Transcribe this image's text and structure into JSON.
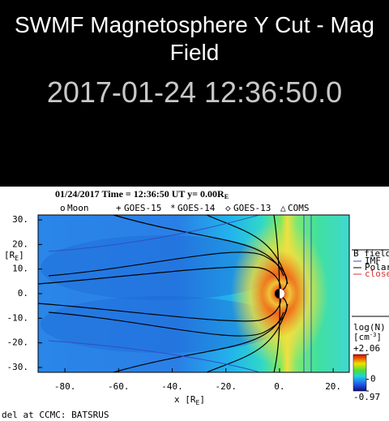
{
  "header": {
    "title": "SWMF Magnetosphere Y Cut - Mag Field",
    "timestamp": "2017-01-24 12:36:50.0"
  },
  "plot": {
    "title": "01/24/2017 Time = 12:36:50 UT y= 0.00R",
    "title_sub": "E",
    "legend": [
      "Moon",
      "GOES-15",
      "GOES-14",
      "GOES-13",
      "COMS"
    ],
    "xlabel": "x [R",
    "xlabel_sub": "E",
    "xlabel_end": "]",
    "ylabel": "[R",
    "ylabel_sub": "E",
    "ylabel_end": "]",
    "xlim": [
      -90,
      26
    ],
    "ylim": [
      -32,
      32
    ],
    "xticks": [
      {
        "value": -80,
        "label": "-80."
      },
      {
        "value": -60,
        "label": "-60."
      },
      {
        "value": -40,
        "label": "-40."
      },
      {
        "value": -20,
        "label": "-20."
      },
      {
        "value": 0,
        "label": "0."
      },
      {
        "value": 20,
        "label": "20."
      }
    ],
    "yticks": [
      {
        "value": 30,
        "label": "30."
      },
      {
        "value": 20,
        "label": "20."
      },
      {
        "value": 10,
        "label": "10."
      },
      {
        "value": 0,
        "label": "0."
      },
      {
        "value": -10,
        "label": "-10."
      },
      {
        "value": -20,
        "label": "-20."
      },
      {
        "value": -30,
        "label": "-30."
      }
    ],
    "fieldline_legend": [
      "B fieldline",
      "IMF",
      "Polar",
      "closed"
    ],
    "colorbar": {
      "label": "log(N)",
      "unit": "[cm",
      "unit_sup": "-3",
      "unit_end": "]",
      "clim": [
        -0.97,
        2.06
      ],
      "ticks": [
        {
          "value": 2.06,
          "label": "+2.06"
        },
        0,
        {
          "value": -0.97,
          "label": "-0.97"
        }
      ]
    },
    "footer": "del at CCMC: BATSRUS"
  }
}
